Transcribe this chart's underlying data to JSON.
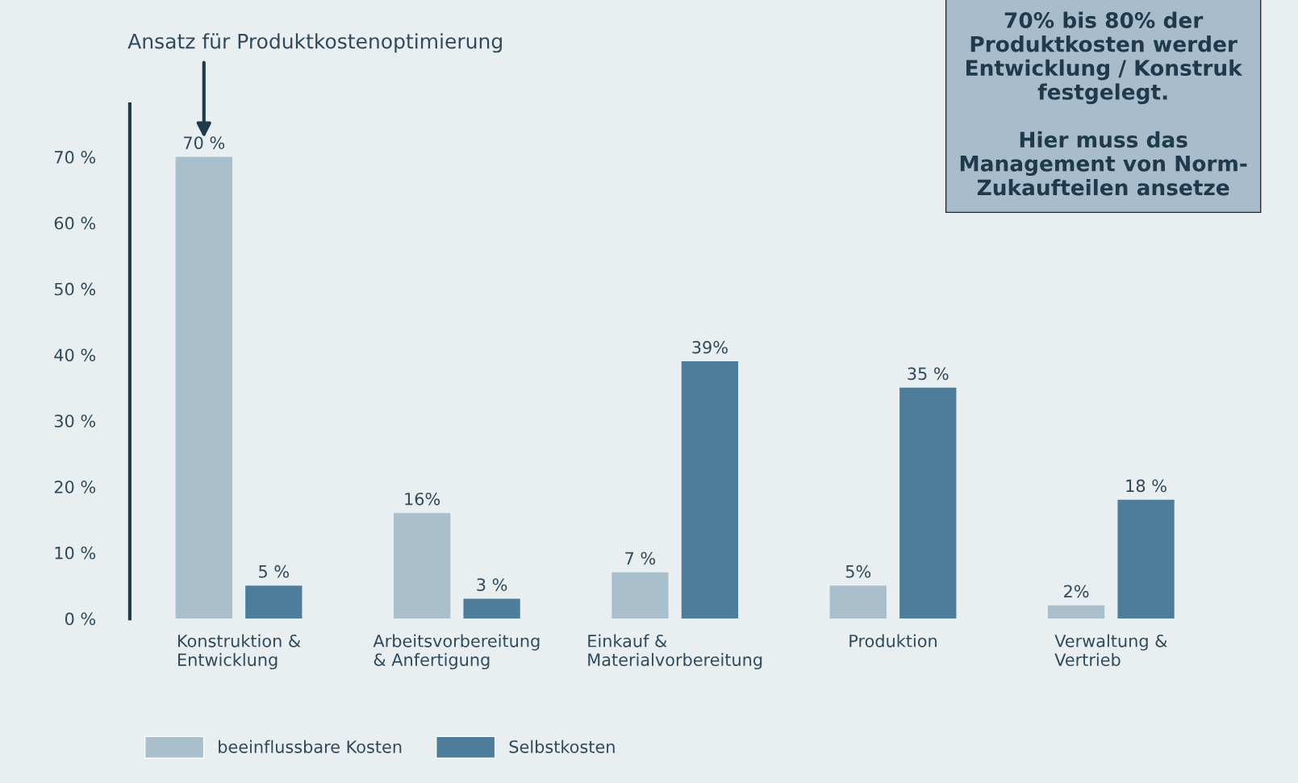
{
  "chart_data": {
    "type": "bar",
    "categories": [
      "Konstruktion &\nEntwicklung",
      "Arbeitsvorbereitung\n& Anfertigung",
      "Einkauf &\nMaterialvorbereitung",
      "Produktion",
      "Verwaltung &\nVertrieb"
    ],
    "series": [
      {
        "name": "beeinflussbare Kosten",
        "color": "#a9bfcc",
        "values": [
          70,
          16,
          7,
          5,
          2
        ],
        "value_labels": [
          "70 %",
          "16%",
          "7 %",
          "5%",
          "2%"
        ]
      },
      {
        "name": "Selbstkosten",
        "color": "#4e7d9c",
        "values": [
          5,
          3,
          39,
          35,
          18
        ],
        "value_labels": [
          "5 %",
          "3 %",
          "39%",
          "35 %",
          "18 %"
        ]
      }
    ],
    "ylim": [
      0,
      78
    ],
    "yticks": [
      {
        "value": 0,
        "label": "0 %"
      },
      {
        "value": 10,
        "label": "10 %"
      },
      {
        "value": 20,
        "label": "20 %"
      },
      {
        "value": 30,
        "label": "30 %"
      },
      {
        "value": 40,
        "label": "40 %"
      },
      {
        "value": 50,
        "label": "50 %"
      },
      {
        "value": 60,
        "label": "60 %"
      },
      {
        "value": 70,
        "label": "70 %"
      }
    ],
    "grid": false,
    "legend": "bottom left",
    "annotations": [
      "Ansatz für Produktkostenoptimierung",
      "70% bis 80% der\nProduktkosten werder\nEntwicklung / Konstruk\nfestgelegt.\n\nHier muss das\nManagement von Norm-\nZukaufteilen ansetze"
    ]
  }
}
